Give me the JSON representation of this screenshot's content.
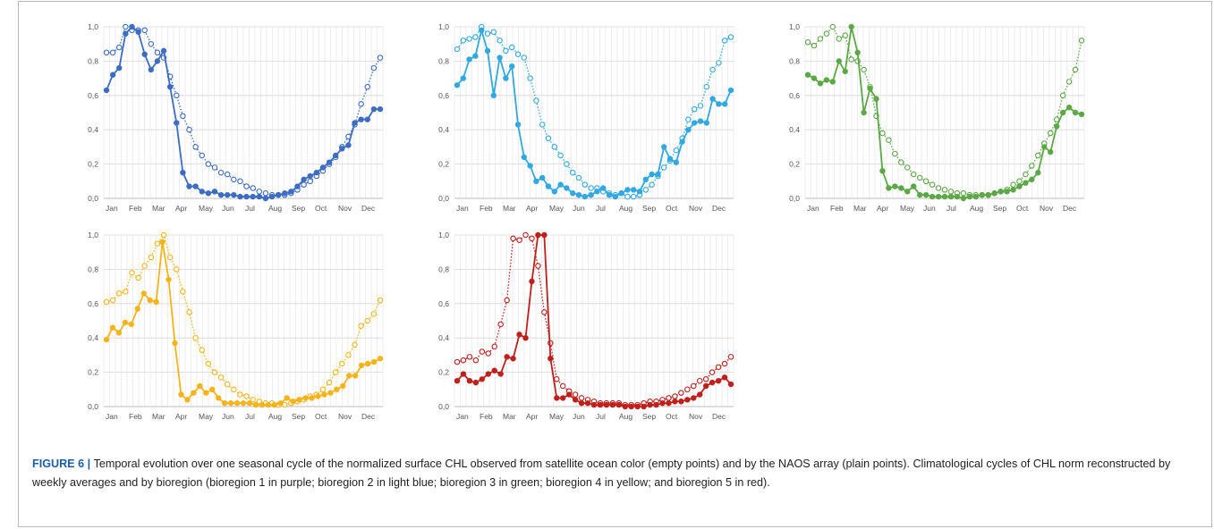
{
  "caption": {
    "label": "FIGURE 6",
    "separator": " | ",
    "text": "Temporal evolution over one seasonal cycle of the normalized surface CHL observed from satellite ocean color (empty points) and by the NAOS array (plain points). Climatological cycles of CHL norm reconstructed by weekly averages and by bioregion (bioregion 1 in purple; bioregion 2 in light blue; bioregion 3 in green; bioregion 4 in yellow; and bioregion 5 in red)."
  },
  "axis": {
    "months": [
      "Jan",
      "Feb",
      "Mar",
      "Apr",
      "May",
      "Jun",
      "Jul",
      "Aug",
      "Sep",
      "Oct",
      "Nov",
      "Dec"
    ],
    "yticks": [
      "0,0",
      "0,2",
      "0,4",
      "0,6",
      "0,8",
      "1,0"
    ]
  },
  "chart_data": [
    {
      "type": "line",
      "panel": "bioregion-1",
      "color": "#3d6cc3",
      "ylim": [
        0,
        1
      ],
      "grid": true,
      "x_unit": "week",
      "series": [
        {
          "style": "solid-filled",
          "values": [
            0.63,
            0.72,
            0.76,
            0.96,
            1.0,
            0.97,
            0.84,
            0.75,
            0.8,
            0.86,
            0.65,
            0.44,
            0.15,
            0.07,
            0.07,
            0.04,
            0.03,
            0.04,
            0.02,
            0.02,
            0.02,
            0.01,
            0.01,
            0.01,
            0.01,
            0.0,
            0.01,
            0.02,
            0.03,
            0.04,
            0.07,
            0.11,
            0.13,
            0.15,
            0.18,
            0.21,
            0.25,
            0.29,
            0.31,
            0.44,
            0.46,
            0.46,
            0.52,
            0.52
          ]
        },
        {
          "style": "dotted-empty",
          "values": [
            0.85,
            0.85,
            0.88,
            1.0,
            0.98,
            0.98,
            0.98,
            0.9,
            0.85,
            0.82,
            0.71,
            0.6,
            0.48,
            0.4,
            0.3,
            0.25,
            0.2,
            0.18,
            0.15,
            0.14,
            0.11,
            0.1,
            0.07,
            0.06,
            0.04,
            0.03,
            0.02,
            0.02,
            0.02,
            0.03,
            0.05,
            0.08,
            0.1,
            0.13,
            0.16,
            0.2,
            0.24,
            0.3,
            0.36,
            0.43,
            0.55,
            0.65,
            0.76,
            0.82
          ]
        }
      ]
    },
    {
      "type": "line",
      "panel": "bioregion-2",
      "color": "#31a8e0",
      "ylim": [
        0,
        1
      ],
      "grid": true,
      "x_unit": "week",
      "series": [
        {
          "style": "solid-filled",
          "values": [
            0.66,
            0.7,
            0.81,
            0.83,
            0.98,
            0.86,
            0.6,
            0.82,
            0.7,
            0.77,
            0.43,
            0.24,
            0.19,
            0.1,
            0.12,
            0.07,
            0.04,
            0.08,
            0.06,
            0.03,
            0.02,
            0.01,
            0.02,
            0.04,
            0.06,
            0.02,
            0.01,
            0.03,
            0.05,
            0.05,
            0.04,
            0.11,
            0.14,
            0.14,
            0.3,
            0.23,
            0.21,
            0.33,
            0.4,
            0.44,
            0.45,
            0.44,
            0.58,
            0.55,
            0.55,
            0.63
          ]
        },
        {
          "style": "dotted-empty",
          "values": [
            0.87,
            0.92,
            0.93,
            0.94,
            1.0,
            0.96,
            0.97,
            0.92,
            0.86,
            0.88,
            0.84,
            0.82,
            0.7,
            0.57,
            0.43,
            0.35,
            0.3,
            0.25,
            0.2,
            0.15,
            0.12,
            0.08,
            0.06,
            0.06,
            0.04,
            0.03,
            0.02,
            0.03,
            0.01,
            0.01,
            0.02,
            0.05,
            0.08,
            0.13,
            0.18,
            0.22,
            0.28,
            0.35,
            0.46,
            0.52,
            0.54,
            0.65,
            0.75,
            0.79,
            0.92,
            0.94
          ]
        }
      ]
    },
    {
      "type": "line",
      "panel": "bioregion-3",
      "color": "#5ca845",
      "ylim": [
        0,
        1
      ],
      "grid": true,
      "x_unit": "week",
      "series": [
        {
          "style": "solid-filled",
          "values": [
            0.72,
            0.7,
            0.67,
            0.69,
            0.68,
            0.8,
            0.74,
            1.0,
            0.85,
            0.5,
            0.64,
            0.58,
            0.16,
            0.06,
            0.07,
            0.06,
            0.04,
            0.07,
            0.02,
            0.02,
            0.01,
            0.01,
            0.01,
            0.01,
            0.01,
            0.0,
            0.01,
            0.01,
            0.02,
            0.02,
            0.03,
            0.04,
            0.04,
            0.05,
            0.07,
            0.09,
            0.11,
            0.15,
            0.3,
            0.27,
            0.42,
            0.5,
            0.53,
            0.5,
            0.49
          ]
        },
        {
          "style": "dotted-empty",
          "values": [
            0.91,
            0.89,
            0.93,
            0.96,
            1.0,
            0.93,
            0.95,
            0.81,
            0.8,
            0.75,
            0.65,
            0.48,
            0.38,
            0.34,
            0.26,
            0.21,
            0.18,
            0.14,
            0.12,
            0.1,
            0.08,
            0.06,
            0.05,
            0.04,
            0.03,
            0.03,
            0.02,
            0.02,
            0.02,
            0.02,
            0.03,
            0.04,
            0.05,
            0.08,
            0.1,
            0.14,
            0.19,
            0.25,
            0.32,
            0.38,
            0.46,
            0.6,
            0.68,
            0.75,
            0.92
          ]
        }
      ]
    },
    {
      "type": "line",
      "panel": "bioregion-4",
      "color": "#f5b41c",
      "ylim": [
        0,
        1
      ],
      "grid": true,
      "x_unit": "week",
      "series": [
        {
          "style": "solid-filled",
          "values": [
            0.39,
            0.46,
            0.43,
            0.49,
            0.48,
            0.57,
            0.66,
            0.62,
            0.61,
            0.96,
            0.74,
            0.37,
            0.07,
            0.04,
            0.08,
            0.12,
            0.08,
            0.1,
            0.05,
            0.02,
            0.02,
            0.02,
            0.02,
            0.02,
            0.01,
            0.01,
            0.01,
            0.01,
            0.02,
            0.05,
            0.03,
            0.04,
            0.05,
            0.05,
            0.06,
            0.07,
            0.08,
            0.1,
            0.12,
            0.18,
            0.18,
            0.24,
            0.25,
            0.26,
            0.28
          ]
        },
        {
          "style": "dotted-empty",
          "values": [
            0.61,
            0.62,
            0.66,
            0.67,
            0.78,
            0.75,
            0.82,
            0.87,
            0.95,
            1.0,
            0.87,
            0.8,
            0.67,
            0.55,
            0.4,
            0.33,
            0.25,
            0.2,
            0.17,
            0.13,
            0.1,
            0.07,
            0.06,
            0.04,
            0.03,
            0.02,
            0.02,
            0.01,
            0.01,
            0.02,
            0.03,
            0.04,
            0.06,
            0.07,
            0.1,
            0.14,
            0.2,
            0.25,
            0.3,
            0.36,
            0.47,
            0.5,
            0.54,
            0.62
          ]
        }
      ]
    },
    {
      "type": "line",
      "panel": "bioregion-5",
      "color": "#c0201c",
      "ylim": [
        0,
        1
      ],
      "grid": true,
      "x_unit": "week",
      "series": [
        {
          "style": "solid-filled",
          "values": [
            0.15,
            0.19,
            0.15,
            0.14,
            0.16,
            0.19,
            0.21,
            0.19,
            0.29,
            0.28,
            0.42,
            0.4,
            0.73,
            1.0,
            1.0,
            0.28,
            0.05,
            0.05,
            0.07,
            0.04,
            0.02,
            0.02,
            0.01,
            0.01,
            0.01,
            0.01,
            0.01,
            0.0,
            0.0,
            0.0,
            0.0,
            0.01,
            0.01,
            0.02,
            0.02,
            0.03,
            0.03,
            0.04,
            0.05,
            0.07,
            0.12,
            0.14,
            0.15,
            0.17,
            0.13
          ]
        },
        {
          "style": "dotted-empty",
          "values": [
            0.26,
            0.27,
            0.29,
            0.27,
            0.32,
            0.31,
            0.35,
            0.48,
            0.62,
            0.98,
            0.97,
            1.0,
            0.98,
            0.82,
            0.55,
            0.37,
            0.16,
            0.12,
            0.09,
            0.07,
            0.05,
            0.04,
            0.03,
            0.02,
            0.02,
            0.02,
            0.02,
            0.01,
            0.01,
            0.01,
            0.02,
            0.03,
            0.03,
            0.04,
            0.05,
            0.06,
            0.08,
            0.1,
            0.12,
            0.15,
            0.16,
            0.2,
            0.23,
            0.25,
            0.29
          ]
        }
      ]
    }
  ]
}
